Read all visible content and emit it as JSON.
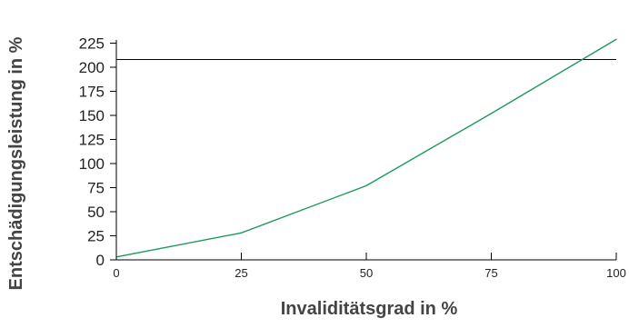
{
  "chart_data": {
    "type": "line",
    "title": "",
    "xlabel": "Invaliditätsgrad in %",
    "ylabel": "Entschädigungsleistung in %",
    "xlim": [
      0,
      100
    ],
    "ylim": [
      0,
      225
    ],
    "x_ticks": [
      0,
      25,
      50,
      75,
      100
    ],
    "y_ticks": [
      0,
      25,
      50,
      75,
      100,
      125,
      150,
      175,
      200,
      225
    ],
    "grid": false,
    "series": [
      {
        "color": "#1a9a5a",
        "x": [
          0,
          25,
          50,
          75,
          100
        ],
        "y": [
          3,
          28,
          77,
          152,
          229
        ]
      }
    ],
    "reference_line": {
      "y": 208,
      "color": "#000000"
    }
  }
}
